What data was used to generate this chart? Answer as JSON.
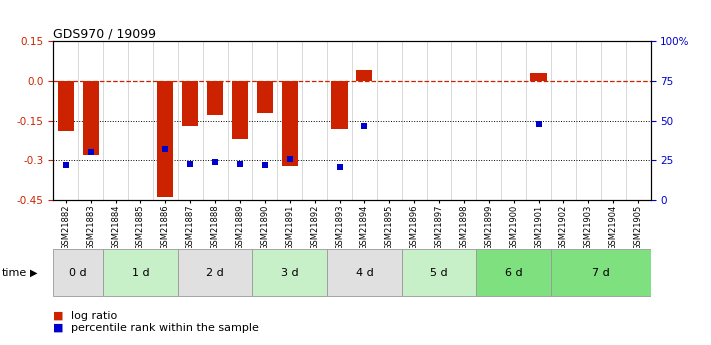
{
  "title": "GDS970 / 19099",
  "samples": [
    "GSM21882",
    "GSM21883",
    "GSM21884",
    "GSM21885",
    "GSM21886",
    "GSM21887",
    "GSM21888",
    "GSM21889",
    "GSM21890",
    "GSM21891",
    "GSM21892",
    "GSM21893",
    "GSM21894",
    "GSM21895",
    "GSM21896",
    "GSM21897",
    "GSM21898",
    "GSM21899",
    "GSM21900",
    "GSM21901",
    "GSM21902",
    "GSM21903",
    "GSM21904",
    "GSM21905"
  ],
  "log_ratio": [
    -0.19,
    -0.28,
    0.0,
    0.0,
    -0.44,
    -0.17,
    -0.13,
    -0.22,
    -0.12,
    -0.32,
    0.0,
    -0.18,
    0.04,
    0.0,
    0.0,
    0.0,
    0.0,
    0.0,
    0.0,
    0.03,
    0.0,
    0.0,
    0.0,
    0.0
  ],
  "pct_rank": [
    0.22,
    0.3,
    null,
    null,
    0.32,
    0.23,
    0.24,
    0.23,
    0.22,
    0.26,
    null,
    0.21,
    0.47,
    null,
    null,
    null,
    null,
    null,
    null,
    0.48,
    null,
    null,
    null,
    null
  ],
  "time_groups": [
    {
      "label": "0 d",
      "start": 0,
      "end": 2,
      "color": "#e0e0e0"
    },
    {
      "label": "1 d",
      "start": 2,
      "end": 5,
      "color": "#c8f0c8"
    },
    {
      "label": "2 d",
      "start": 5,
      "end": 8,
      "color": "#e0e0e0"
    },
    {
      "label": "3 d",
      "start": 8,
      "end": 11,
      "color": "#c8f0c8"
    },
    {
      "label": "4 d",
      "start": 11,
      "end": 14,
      "color": "#e0e0e0"
    },
    {
      "label": "5 d",
      "start": 14,
      "end": 17,
      "color": "#c8f0c8"
    },
    {
      "label": "6 d",
      "start": 17,
      "end": 20,
      "color": "#7fe07f"
    },
    {
      "label": "7 d",
      "start": 20,
      "end": 24,
      "color": "#7fe07f"
    }
  ],
  "ylim": [
    -0.45,
    0.15
  ],
  "yticks_left": [
    -0.45,
    -0.3,
    -0.15,
    0.0,
    0.15
  ],
  "yticks_right": [
    0,
    25,
    50,
    75,
    100
  ],
  "hlines": [
    -0.15,
    -0.3
  ],
  "bar_color_red": "#cc2200",
  "bar_color_blue": "#0000cc",
  "dashed_line_y": 0.0
}
